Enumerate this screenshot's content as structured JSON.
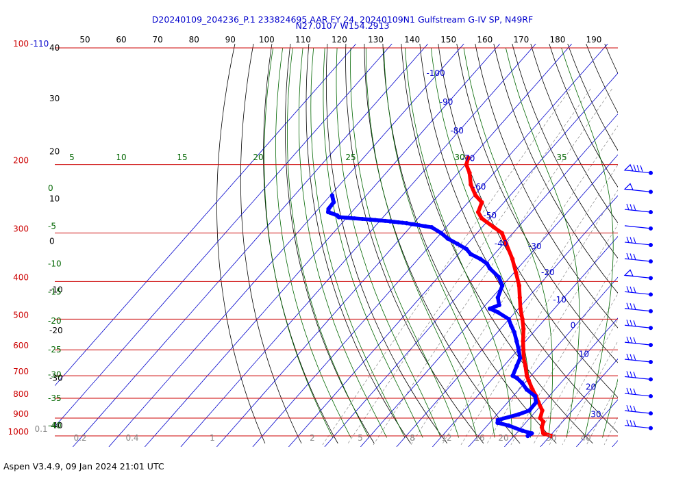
{
  "title_line1": "D20240109_204236_P.1 233824695 AAR FY 24, 20240109N1 Gulfstream G-IV SP, N49RF",
  "title_line2": "N27.0107 W154.2913",
  "footer": "Aspen V3.4.9, 09 Jan 2024  21:01 UTC",
  "colors": {
    "temperature": "#ff0000",
    "dewpoint": "#0000ff",
    "isobar": "#cc0000",
    "isotherm": "#0000cc",
    "dry_adiabat": "#000000",
    "mixing_ratio": "#888888",
    "moist_adiabat": "#006600",
    "top_scale": "#000000"
  },
  "chart_data": {
    "type": "line",
    "chart_kind": "skew-T log-P diagram",
    "pressure_range_hPa": [
      100,
      1000
    ],
    "isobars_hPa": [
      100,
      200,
      300,
      400,
      500,
      600,
      700,
      800,
      900,
      1000
    ],
    "pressure_tick_labels": [
      "100",
      "200",
      "300",
      "400",
      "500",
      "600",
      "700",
      "800",
      "900",
      "1000"
    ],
    "top_extra_label": "-110",
    "top_scale_labels": [
      "50",
      "60",
      "70",
      "80",
      "90",
      "100",
      "110",
      "120",
      "130",
      "140",
      "150",
      "160",
      "170",
      "180",
      "190"
    ],
    "left_black_labels": [
      {
        "text": "40",
        "p": 100
      },
      {
        "text": "30",
        "p": 135
      },
      {
        "text": "20",
        "p": 185
      },
      {
        "text": "10",
        "p": 245
      },
      {
        "text": "0",
        "p": 315
      },
      {
        "text": "-10",
        "p": 420
      },
      {
        "text": "-20",
        "p": 535
      },
      {
        "text": "-30",
        "p": 710
      },
      {
        "text": "-40",
        "p": 940
      }
    ],
    "moist_adiabat_labels": [
      {
        "text": "0",
        "p": 230
      },
      {
        "text": "-5",
        "p": 288
      },
      {
        "text": "-10",
        "p": 360
      },
      {
        "text": "-15",
        "p": 425
      },
      {
        "text": "-20",
        "p": 505
      },
      {
        "text": "-25",
        "p": 600
      },
      {
        "text": "-30",
        "p": 695
      },
      {
        "text": "-35",
        "p": 800
      },
      {
        "text": "-40",
        "p": 940
      }
    ],
    "theta_e_labels": [
      {
        "text": "5",
        "x": 105
      },
      {
        "text": "10",
        "x": 177
      },
      {
        "text": "15",
        "x": 266
      },
      {
        "text": "20",
        "x": 377
      },
      {
        "text": "25",
        "x": 512
      },
      {
        "text": "30",
        "x": 671
      },
      {
        "text": "35",
        "x": 820
      }
    ],
    "isotherm_labels": [
      {
        "text": "-100",
        "t": -100,
        "p": 118
      },
      {
        "text": "-90",
        "t": -90,
        "p": 140
      },
      {
        "text": "-80",
        "t": -80,
        "p": 166
      },
      {
        "text": "-70",
        "t": -70,
        "p": 196
      },
      {
        "text": "-60",
        "t": -60,
        "p": 232
      },
      {
        "text": "-50",
        "t": -50,
        "p": 275
      },
      {
        "text": "-40",
        "t": -40,
        "p": 325
      },
      {
        "text": "-30",
        "t": -30,
        "p": 330
      },
      {
        "text": "-20",
        "t": -20,
        "p": 385
      },
      {
        "text": "-10",
        "t": -10,
        "p": 453
      },
      {
        "text": "0",
        "t": 0,
        "p": 528
      },
      {
        "text": "10",
        "t": 10,
        "p": 625
      },
      {
        "text": "20",
        "t": 20,
        "p": 760
      },
      {
        "text": "30",
        "t": 30,
        "p": 895
      }
    ],
    "mixing_ratio_labels": [
      "0.1",
      "0.2",
      "0.4",
      "1",
      "2",
      "5",
      "8",
      "12",
      "16",
      "20",
      "30",
      "40"
    ],
    "series": [
      {
        "name": "Temperature",
        "points": [
          {
            "p": 1000,
            "t": 20.3
          },
          {
            "p": 985,
            "t": 17.5
          },
          {
            "p": 950,
            "t": 15.6
          },
          {
            "p": 920,
            "t": 14.7
          },
          {
            "p": 900,
            "t": 12.9
          },
          {
            "p": 860,
            "t": 11.6
          },
          {
            "p": 820,
            "t": 8.6
          },
          {
            "p": 790,
            "t": 6.4
          },
          {
            "p": 760,
            "t": 3.8
          },
          {
            "p": 720,
            "t": 0.5
          },
          {
            "p": 700,
            "t": -1.2
          },
          {
            "p": 660,
            "t": -4.0
          },
          {
            "p": 630,
            "t": -6.4
          },
          {
            "p": 600,
            "t": -8.5
          },
          {
            "p": 570,
            "t": -10.7
          },
          {
            "p": 530,
            "t": -13.6
          },
          {
            "p": 500,
            "t": -16.3
          },
          {
            "p": 470,
            "t": -19.4
          },
          {
            "p": 440,
            "t": -22.3
          },
          {
            "p": 410,
            "t": -25.4
          },
          {
            "p": 380,
            "t": -29.4
          },
          {
            "p": 350,
            "t": -33.8
          },
          {
            "p": 320,
            "t": -39.2
          },
          {
            "p": 300,
            "t": -43.1
          },
          {
            "p": 290,
            "t": -46.7
          },
          {
            "p": 275,
            "t": -52.3
          },
          {
            "p": 265,
            "t": -54.8
          },
          {
            "p": 250,
            "t": -56.2
          },
          {
            "p": 240,
            "t": -59.6
          },
          {
            "p": 225,
            "t": -63.6
          },
          {
            "p": 210,
            "t": -66.8
          },
          {
            "p": 200,
            "t": -69.7
          },
          {
            "p": 192,
            "t": -70.9
          }
        ]
      },
      {
        "name": "Dewpoint",
        "points": [
          {
            "p": 1000,
            "t": 13.8
          },
          {
            "p": 985,
            "t": 14.3
          },
          {
            "p": 970,
            "t": 11.1
          },
          {
            "p": 940,
            "t": 5.9
          },
          {
            "p": 925,
            "t": 2.2
          },
          {
            "p": 910,
            "t": 1.6
          },
          {
            "p": 880,
            "t": 6.0
          },
          {
            "p": 860,
            "t": 8.0
          },
          {
            "p": 820,
            "t": 7.9
          },
          {
            "p": 790,
            "t": 6.1
          },
          {
            "p": 760,
            "t": 2.2
          },
          {
            "p": 730,
            "t": -0.8
          },
          {
            "p": 710,
            "t": -3.3
          },
          {
            "p": 700,
            "t": -5.1
          },
          {
            "p": 660,
            "t": -6.4
          },
          {
            "p": 630,
            "t": -7.4
          },
          {
            "p": 600,
            "t": -9.8
          },
          {
            "p": 570,
            "t": -12.5
          },
          {
            "p": 540,
            "t": -15.4
          },
          {
            "p": 520,
            "t": -17.8
          },
          {
            "p": 500,
            "t": -20.1
          },
          {
            "p": 480,
            "t": -24.8
          },
          {
            "p": 470,
            "t": -27.9
          },
          {
            "p": 460,
            "t": -26.2
          },
          {
            "p": 440,
            "t": -28.4
          },
          {
            "p": 410,
            "t": -30.1
          },
          {
            "p": 390,
            "t": -33.1
          },
          {
            "p": 370,
            "t": -37.8
          },
          {
            "p": 360,
            "t": -39.7
          },
          {
            "p": 350,
            "t": -42.7
          },
          {
            "p": 340,
            "t": -46.6
          },
          {
            "p": 330,
            "t": -49.0
          },
          {
            "p": 320,
            "t": -52.8
          },
          {
            "p": 310,
            "t": -56.8
          },
          {
            "p": 300,
            "t": -60.0
          },
          {
            "p": 290,
            "t": -64.0
          },
          {
            "p": 283,
            "t": -72.0
          },
          {
            "p": 280,
            "t": -77.0
          },
          {
            "p": 277,
            "t": -83.0
          },
          {
            "p": 273,
            "t": -92.3
          },
          {
            "p": 270,
            "t": -93.3
          },
          {
            "p": 265,
            "t": -96.5
          },
          {
            "p": 260,
            "t": -97.2
          },
          {
            "p": 250,
            "t": -97.4
          },
          {
            "p": 240,
            "t": -99.5
          }
        ]
      }
    ],
    "wind_barbs": [
      {
        "p": 210,
        "kind": "pennant-barbs"
      },
      {
        "p": 235,
        "kind": "pennant"
      },
      {
        "p": 265,
        "kind": "barbs"
      },
      {
        "p": 292,
        "kind": "staff"
      },
      {
        "p": 322,
        "kind": "barbs"
      },
      {
        "p": 355,
        "kind": "barbs"
      },
      {
        "p": 392,
        "kind": "pennant"
      },
      {
        "p": 432,
        "kind": "barbs"
      },
      {
        "p": 477,
        "kind": "barbs"
      },
      {
        "p": 527,
        "kind": "barbs"
      },
      {
        "p": 583,
        "kind": "barbs"
      },
      {
        "p": 645,
        "kind": "barbs"
      },
      {
        "p": 715,
        "kind": "barbs"
      },
      {
        "p": 790,
        "kind": "barbs"
      },
      {
        "p": 875,
        "kind": "barbs"
      },
      {
        "p": 955,
        "kind": "barbs"
      }
    ]
  }
}
